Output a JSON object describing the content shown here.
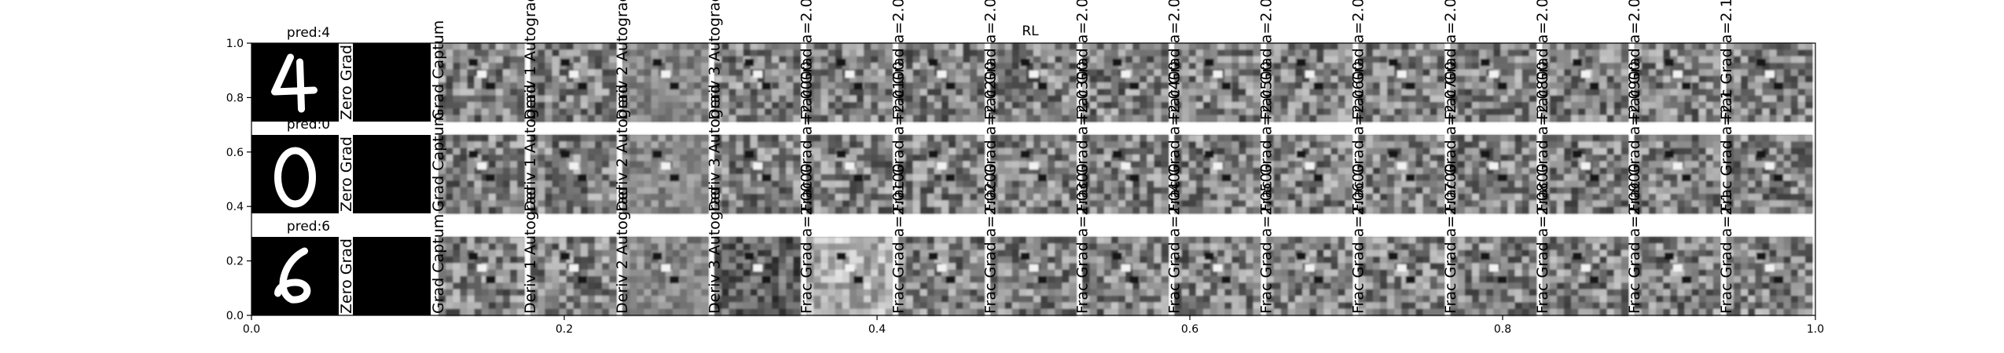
{
  "figure": {
    "center_title": "RL",
    "row_titles": [
      "pred:4",
      "pred:0",
      "pred:6"
    ]
  },
  "chart_data": {
    "type": "image-grid",
    "title": "RL",
    "rows": [
      {
        "pred_label": "pred:4",
        "digit": "4"
      },
      {
        "pred_label": "pred:0",
        "digit": "0"
      },
      {
        "pred_label": "pred:6",
        "digit": "6"
      }
    ],
    "columns": [
      "Zero Grad",
      "Grad Captum",
      "Deriv 1 Autograd",
      "Deriv 2 Autograd",
      "Deriv 3 Autograd",
      "Frac Grad a=2.0000",
      "Frac Grad a=2.0100",
      "Frac Grad a=2.0200",
      "Frac Grad a=2.0300",
      "Frac Grad a=2.0400",
      "Frac Grad a=2.0500",
      "Frac Grad a=2.0600",
      "Frac Grad a=2.0700",
      "Frac Grad a=2.0800",
      "Frac Grad a=2.0900",
      "Frac Grad a=2.1"
    ],
    "xlim": [
      0.0,
      1.0
    ],
    "ylim": [
      0.0,
      1.0
    ],
    "xticks": [
      0.0,
      0.2,
      0.4,
      0.6,
      0.8,
      1.0
    ],
    "yticks": [
      0.0,
      0.2,
      0.4,
      0.6,
      0.8,
      1.0
    ],
    "xtick_labels": [
      "0.0",
      "0.2",
      "0.4",
      "0.6",
      "0.8",
      "1.0"
    ],
    "ytick_labels": [
      "0.0",
      "0.2",
      "0.4",
      "0.6",
      "0.8",
      "1.0"
    ]
  }
}
